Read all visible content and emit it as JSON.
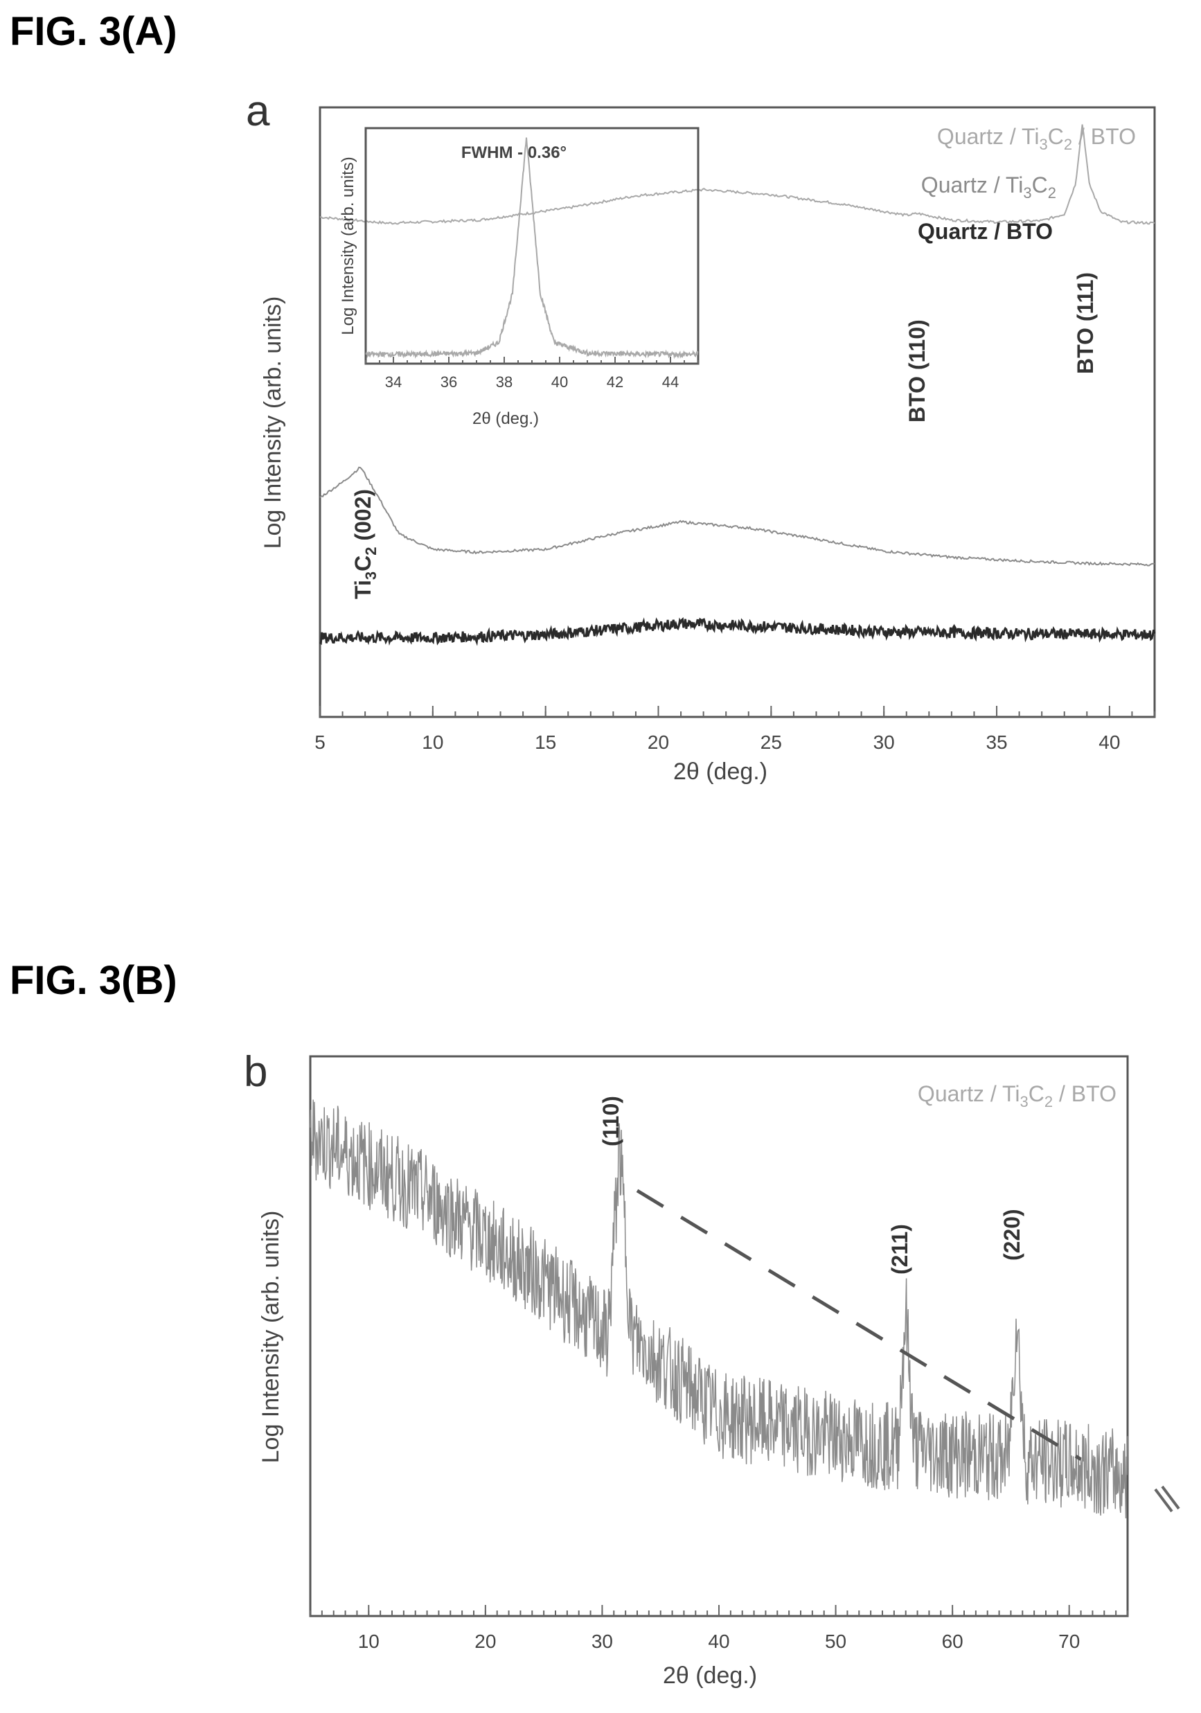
{
  "figure_a": {
    "fig_label": "FIG. 3(A)",
    "panel_letter": "a"
  },
  "figure_b": {
    "fig_label": "FIG. 3(B)",
    "panel_letter": "b"
  },
  "colors": {
    "axes": "#555555",
    "trace_dark": "#2a2a2a",
    "trace_gray": "#8a8a8a",
    "trace_light": "#a8a8a8",
    "text": "#444444"
  },
  "chart_data": [
    {
      "type": "line",
      "panel": "a",
      "xlabel": "2θ (deg.)",
      "ylabel": "Log Intensity (arb. units)",
      "xlim": [
        5,
        42
      ],
      "xticks": [
        "5",
        "10",
        "15",
        "20",
        "25",
        "30",
        "35",
        "40"
      ],
      "legend_position": "top-right",
      "legend": [
        {
          "label": "Quartz / Ti3C2 / BTO",
          "base": "Quartz / Ti",
          "sub1": "3",
          "mid": "C",
          "sub2": "2",
          "tail": " / BTO"
        },
        {
          "label": "Quartz / Ti3C2",
          "base": "Quartz / Ti",
          "sub1": "3",
          "mid": "C",
          "sub2": "2",
          "tail": ""
        },
        {
          "label": "Quartz / BTO",
          "base": "Quartz / BTO",
          "sub1": "",
          "mid": "",
          "sub2": "",
          "tail": ""
        }
      ],
      "annotations": {
        "ti3c2_002": {
          "label": "Ti3C2 (002)",
          "base": "Ti",
          "sub1": "3",
          "mid": "C",
          "sub2": "2",
          "tail": " (002)",
          "x": 6.8
        },
        "bto_110": {
          "label": "BTO (110)",
          "x": 31.5
        },
        "bto_111": {
          "label": "BTO (111)",
          "x": 38.8
        }
      },
      "series": [
        {
          "name": "Quartz / Ti3C2 / BTO",
          "x": [
            5,
            8,
            12,
            16,
            19,
            22,
            25,
            28,
            31,
            31.5,
            33,
            35,
            37,
            38,
            38.5,
            38.8,
            39.1,
            39.6,
            40.5,
            42
          ],
          "y": [
            0.82,
            0.81,
            0.815,
            0.835,
            0.855,
            0.865,
            0.857,
            0.842,
            0.823,
            0.826,
            0.815,
            0.812,
            0.814,
            0.825,
            0.875,
            0.975,
            0.875,
            0.83,
            0.812,
            0.81
          ]
        },
        {
          "name": "Quartz / Ti3C2",
          "x": [
            5,
            6,
            6.8,
            7.6,
            8.5,
            10,
            12,
            15,
            18,
            21,
            24,
            27,
            30,
            33,
            36,
            39,
            42
          ],
          "y": [
            0.36,
            0.385,
            0.41,
            0.36,
            0.3,
            0.275,
            0.27,
            0.275,
            0.3,
            0.32,
            0.31,
            0.292,
            0.272,
            0.262,
            0.256,
            0.252,
            0.25
          ]
        },
        {
          "name": "Quartz / BTO",
          "x": [
            5,
            10,
            15,
            20,
            21,
            25,
            30,
            35,
            42
          ],
          "y": [
            0.13,
            0.13,
            0.135,
            0.15,
            0.153,
            0.148,
            0.14,
            0.137,
            0.135
          ]
        }
      ]
    },
    {
      "type": "line",
      "panel": "a-inset",
      "title": "FWHM - 0.36°",
      "xlabel": "2θ (deg.)",
      "ylabel": "Log Intensity (arb. units)",
      "xlim": [
        33,
        45
      ],
      "xticks": [
        "34",
        "36",
        "38",
        "40",
        "42",
        "44"
      ],
      "series": [
        {
          "name": "Quartz / Ti3C2 / BTO",
          "x": [
            33,
            35,
            37,
            37.8,
            38.3,
            38.6,
            38.8,
            39.0,
            39.3,
            39.8,
            41,
            43,
            45
          ],
          "y": [
            0.04,
            0.04,
            0.045,
            0.09,
            0.3,
            0.7,
            0.96,
            0.7,
            0.3,
            0.09,
            0.045,
            0.04,
            0.04
          ]
        }
      ]
    },
    {
      "type": "line",
      "panel": "b",
      "xlabel": "2θ (deg.)",
      "ylabel": "Log Intensity (arb. units)",
      "xlim": [
        5,
        75
      ],
      "xticks": [
        "10",
        "20",
        "30",
        "40",
        "50",
        "60",
        "70"
      ],
      "legend_position": "top-right",
      "legend": [
        {
          "label": "Quartz / Ti3C2 / BTO",
          "base": "Quartz / Ti",
          "sub1": "3",
          "mid": "C",
          "sub2": "2",
          "tail": " / BTO"
        }
      ],
      "annotations": {
        "p110": {
          "label": "(110)",
          "x": 31.5
        },
        "p211": {
          "label": "(211)",
          "x": 56.0
        },
        "p220": {
          "label": "(220)",
          "x": 65.5
        }
      },
      "series": [
        {
          "name": "Quartz / Ti3C2 / BTO",
          "x": [
            5,
            15,
            25,
            30.5,
            31.5,
            32.5,
            40,
            50,
            55.3,
            56,
            56.7,
            60,
            64.8,
            65.5,
            66.2,
            70,
            75
          ],
          "y": [
            0.86,
            0.75,
            0.6,
            0.5,
            0.84,
            0.5,
            0.36,
            0.32,
            0.3,
            0.55,
            0.3,
            0.29,
            0.28,
            0.54,
            0.28,
            0.27,
            0.25
          ]
        },
        {
          "name": "guide",
          "x": [
            33,
            71
          ],
          "y": [
            0.76,
            0.28
          ]
        }
      ]
    }
  ]
}
